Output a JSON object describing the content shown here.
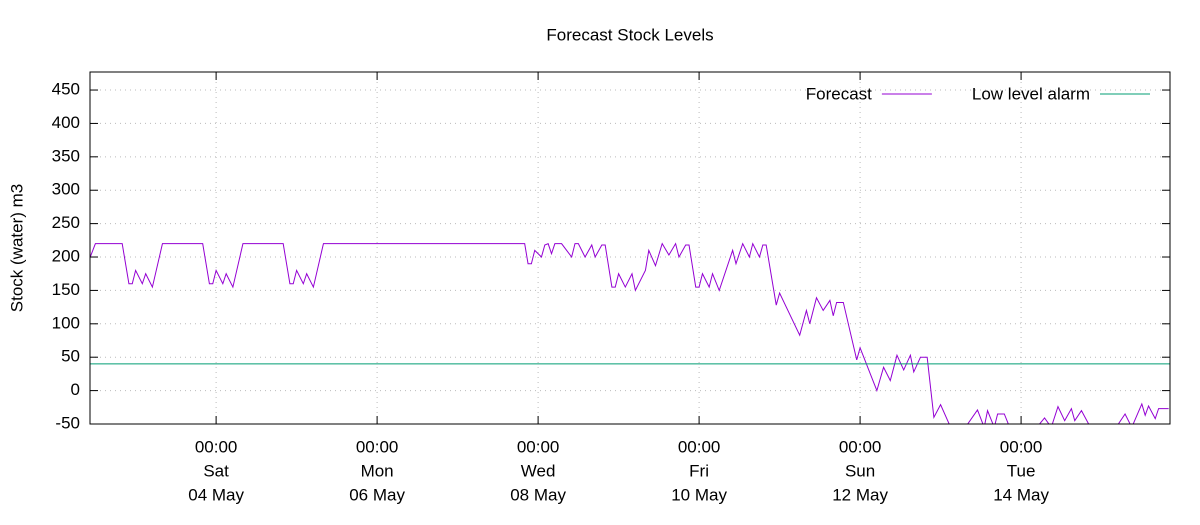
{
  "chart_data": {
    "type": "line",
    "title": "Forecast Stock Levels",
    "y_label": "Stock (water) m3",
    "ylim": [
      -50,
      477
    ],
    "yticks": [
      -50,
      0,
      50,
      100,
      150,
      200,
      250,
      300,
      350,
      400,
      450
    ],
    "xlim": [
      "02 May 10:24",
      "15 May 20:24"
    ],
    "xticks": [
      {
        "value": "04 May 00:00",
        "label": [
          "00:00",
          "Sat",
          "04 May"
        ]
      },
      {
        "value": "06 May 00:00",
        "label": [
          "00:00",
          "Mon",
          "06 May"
        ]
      },
      {
        "value": "08 May 00:00",
        "label": [
          "00:00",
          "Wed",
          "08 May"
        ]
      },
      {
        "value": "10 May 00:00",
        "label": [
          "00:00",
          "Fri",
          "10 May"
        ]
      },
      {
        "value": "12 May 00:00",
        "label": [
          "00:00",
          "Sun",
          "12 May"
        ]
      },
      {
        "value": "14 May 00:00",
        "label": [
          "00:00",
          "Tue",
          "14 May"
        ]
      }
    ],
    "grid": true,
    "legend": "top-right",
    "series": [
      {
        "name": "Forecast",
        "color": "#9400d3",
        "x": [
          "02 May 10:24",
          "02 May 12:00",
          "02 May 20:00",
          "02 May 22:00",
          "02 May 23:00",
          "03 May 00:00",
          "03 May 02:00",
          "03 May 03:00",
          "03 May 05:00",
          "03 May 08:00",
          "03 May 20:00",
          "03 May 22:00",
          "03 May 23:00",
          "04 May 00:00",
          "04 May 02:00",
          "04 May 03:00",
          "04 May 05:00",
          "04 May 08:00",
          "04 May 20:00",
          "04 May 22:00",
          "04 May 23:00",
          "05 May 00:00",
          "05 May 02:00",
          "05 May 03:00",
          "05 May 05:00",
          "05 May 08:00",
          "07 May 20:00",
          "07 May 21:00",
          "07 May 22:00",
          "07 May 23:00",
          "08 May 01:00",
          "08 May 02:00",
          "08 May 03:00",
          "08 May 04:00",
          "08 May 05:00",
          "08 May 07:00",
          "08 May 10:00",
          "08 May 11:00",
          "08 May 12:00",
          "08 May 14:00",
          "08 May 16:00",
          "08 May 17:00",
          "08 May 19:00",
          "08 May 20:00",
          "08 May 22:00",
          "08 May 23:00",
          "09 May 00:00",
          "09 May 02:00",
          "09 May 04:00",
          "09 May 05:00",
          "09 May 08:00",
          "09 May 09:00",
          "09 May 11:00",
          "09 May 13:00",
          "09 May 15:00",
          "09 May 17:00",
          "09 May 18:00",
          "09 May 20:00",
          "09 May 21:00",
          "09 May 23:00",
          "10 May 00:00",
          "10 May 01:00",
          "10 May 03:00",
          "10 May 04:00",
          "10 May 06:00",
          "10 May 10:00",
          "10 May 11:00",
          "10 May 13:00",
          "10 May 15:00",
          "10 May 16:00",
          "10 May 18:00",
          "10 May 19:00",
          "10 May 20:00",
          "10 May 23:00",
          "11 May 00:00",
          "11 May 06:00",
          "11 May 08:00",
          "11 May 09:00",
          "11 May 11:00",
          "11 May 13:00",
          "11 May 15:00",
          "11 May 16:00",
          "11 May 17:00",
          "11 May 19:00",
          "11 May 23:00",
          "12 May 00:00",
          "12 May 05:00",
          "12 May 07:00",
          "12 May 09:00",
          "12 May 11:00",
          "12 May 13:00",
          "12 May 15:00",
          "12 May 16:00",
          "12 May 18:00",
          "12 May 20:00",
          "12 May 22:00",
          "13 May 00:00",
          "13 May 03:00",
          "13 May 06:00",
          "13 May 11:00",
          "13 May 13:00",
          "13 May 14:00",
          "13 May 16:00",
          "13 May 17:00",
          "13 May 19:00",
          "13 May 21:00",
          "14 May 03:00",
          "14 May 07:00",
          "14 May 09:00",
          "14 May 11:00",
          "14 May 13:00",
          "14 May 15:00",
          "14 May 16:00",
          "14 May 18:00",
          "14 May 21:00",
          "15 May 03:00",
          "15 May 07:00",
          "15 May 09:00",
          "15 May 12:00",
          "15 May 13:00",
          "15 May 14:00",
          "15 May 16:00",
          "15 May 17:00",
          "15 May 20:00"
        ],
        "values": [
          199,
          220,
          220,
          160,
          160,
          180,
          160,
          175,
          155,
          220,
          220,
          160,
          160,
          180,
          160,
          175,
          155,
          220,
          220,
          160,
          160,
          180,
          160,
          175,
          155,
          220,
          220,
          190,
          190,
          210,
          200,
          218,
          220,
          205,
          220,
          220,
          200,
          220,
          220,
          200,
          218,
          200,
          218,
          218,
          155,
          155,
          175,
          155,
          175,
          150,
          180,
          210,
          187,
          220,
          203,
          220,
          200,
          218,
          218,
          155,
          155,
          175,
          155,
          175,
          150,
          210,
          190,
          220,
          200,
          220,
          200,
          218,
          218,
          128,
          146,
          83,
          120,
          100,
          139,
          120,
          135,
          112,
          132,
          132,
          46,
          64,
          0,
          35,
          15,
          53,
          31,
          53,
          28,
          50,
          50,
          -40,
          -21,
          -55,
          -65,
          -29,
          -55,
          -30,
          -55,
          -35,
          -35,
          -60,
          -65,
          -41,
          -55,
          -24,
          -45,
          -27,
          -45,
          -30,
          -58,
          -65,
          -35,
          -55,
          -20,
          -37,
          -23,
          -42,
          -27,
          -27
        ]
      },
      {
        "name": "Low level alarm",
        "color": "#009e73",
        "x": [
          "02 May 10:24",
          "15 May 20:24"
        ],
        "values": [
          40,
          40
        ]
      }
    ]
  }
}
